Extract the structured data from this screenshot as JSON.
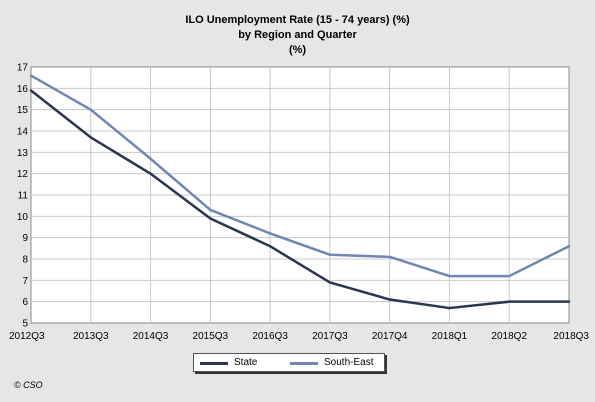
{
  "chart_data": {
    "type": "line",
    "title_lines": [
      "ILO Unemployment Rate (15 - 74 years) (%)",
      "by Region and Quarter",
      "(%)"
    ],
    "categories": [
      "2012Q3",
      "2013Q3",
      "2014Q3",
      "2015Q3",
      "2016Q3",
      "2017Q3",
      "2017Q4",
      "2018Q1",
      "2018Q2",
      "2018Q3"
    ],
    "series": [
      {
        "name": "State",
        "color": "#2b3550",
        "values": [
          15.9,
          13.7,
          12.0,
          9.9,
          8.6,
          6.9,
          6.1,
          5.7,
          6.0,
          6.0
        ]
      },
      {
        "name": "South-East",
        "color": "#6f86b5",
        "values": [
          16.6,
          15.0,
          12.7,
          10.3,
          9.2,
          8.2,
          8.1,
          7.2,
          7.2,
          8.6
        ]
      }
    ],
    "yticks": [
      5,
      6,
      7,
      8,
      9,
      10,
      11,
      12,
      13,
      14,
      15,
      16,
      17
    ],
    "ylim": [
      5,
      17
    ],
    "grid": true,
    "legend_position": "bottom-center"
  },
  "footer": {
    "copyright": "© CSO"
  }
}
